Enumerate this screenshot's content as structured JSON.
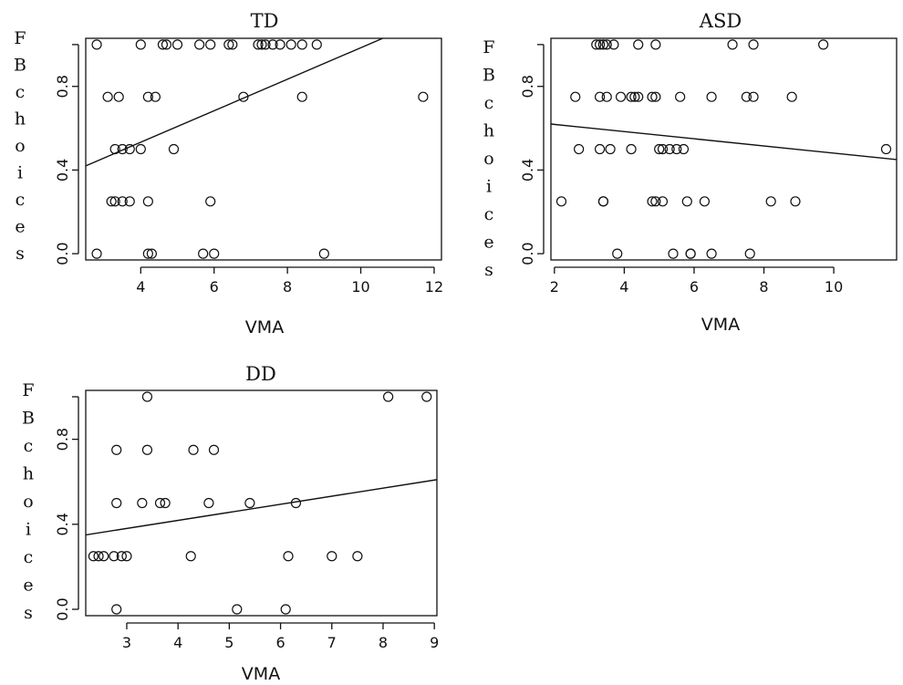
{
  "chart_data": [
    {
      "type": "scatter",
      "title": "TD",
      "xlabel": "VMA",
      "ylabel": "FBchoices",
      "xlim": [
        2.5,
        12.2
      ],
      "ylim": [
        -0.03,
        1.03
      ],
      "xticks": [
        4,
        6,
        8,
        10,
        12
      ],
      "yticks": [
        0.0,
        0.4,
        0.8
      ],
      "points": [
        [
          2.8,
          1.0
        ],
        [
          4.0,
          1.0
        ],
        [
          4.6,
          1.0
        ],
        [
          4.7,
          1.0
        ],
        [
          5.0,
          1.0
        ],
        [
          5.6,
          1.0
        ],
        [
          5.9,
          1.0
        ],
        [
          6.4,
          1.0
        ],
        [
          6.5,
          1.0
        ],
        [
          7.2,
          1.0
        ],
        [
          7.3,
          1.0
        ],
        [
          7.4,
          1.0
        ],
        [
          7.6,
          1.0
        ],
        [
          7.8,
          1.0
        ],
        [
          8.1,
          1.0
        ],
        [
          8.4,
          1.0
        ],
        [
          8.8,
          1.0
        ],
        [
          3.1,
          0.75
        ],
        [
          3.4,
          0.75
        ],
        [
          4.2,
          0.75
        ],
        [
          4.4,
          0.75
        ],
        [
          6.8,
          0.75
        ],
        [
          8.4,
          0.75
        ],
        [
          11.7,
          0.75
        ],
        [
          3.3,
          0.5
        ],
        [
          3.5,
          0.5
        ],
        [
          3.7,
          0.5
        ],
        [
          4.0,
          0.5
        ],
        [
          4.9,
          0.5
        ],
        [
          3.2,
          0.25
        ],
        [
          3.3,
          0.25
        ],
        [
          3.5,
          0.25
        ],
        [
          3.7,
          0.25
        ],
        [
          4.2,
          0.25
        ],
        [
          5.9,
          0.25
        ],
        [
          2.8,
          0.0
        ],
        [
          4.2,
          0.0
        ],
        [
          4.3,
          0.0
        ],
        [
          5.7,
          0.0
        ],
        [
          6.0,
          0.0
        ],
        [
          9.0,
          0.0
        ]
      ],
      "fit_line": [
        [
          2.5,
          0.42
        ],
        [
          10.6,
          1.03
        ]
      ]
    },
    {
      "type": "scatter",
      "title": "ASD",
      "xlabel": "VMA",
      "ylabel": "FBchoices",
      "xlim": [
        1.9,
        11.8
      ],
      "ylim": [
        -0.03,
        1.03
      ],
      "xticks": [
        2,
        4,
        6,
        8,
        10
      ],
      "yticks": [
        0.0,
        0.4,
        0.8
      ],
      "points": [
        [
          3.2,
          1.0
        ],
        [
          3.3,
          1.0
        ],
        [
          3.4,
          1.0
        ],
        [
          3.5,
          1.0
        ],
        [
          3.7,
          1.0
        ],
        [
          4.4,
          1.0
        ],
        [
          4.9,
          1.0
        ],
        [
          7.1,
          1.0
        ],
        [
          7.7,
          1.0
        ],
        [
          9.7,
          1.0
        ],
        [
          2.6,
          0.75
        ],
        [
          3.3,
          0.75
        ],
        [
          3.5,
          0.75
        ],
        [
          3.9,
          0.75
        ],
        [
          4.2,
          0.75
        ],
        [
          4.3,
          0.75
        ],
        [
          4.4,
          0.75
        ],
        [
          4.8,
          0.75
        ],
        [
          4.9,
          0.75
        ],
        [
          5.6,
          0.75
        ],
        [
          6.5,
          0.75
        ],
        [
          7.5,
          0.75
        ],
        [
          7.7,
          0.75
        ],
        [
          8.8,
          0.75
        ],
        [
          2.7,
          0.5
        ],
        [
          3.3,
          0.5
        ],
        [
          3.6,
          0.5
        ],
        [
          4.2,
          0.5
        ],
        [
          5.0,
          0.5
        ],
        [
          5.1,
          0.5
        ],
        [
          5.3,
          0.5
        ],
        [
          5.5,
          0.5
        ],
        [
          5.7,
          0.5
        ],
        [
          11.5,
          0.5
        ],
        [
          2.2,
          0.25
        ],
        [
          3.4,
          0.25
        ],
        [
          3.4,
          0.25
        ],
        [
          4.8,
          0.25
        ],
        [
          4.9,
          0.25
        ],
        [
          5.1,
          0.25
        ],
        [
          5.8,
          0.25
        ],
        [
          6.3,
          0.25
        ],
        [
          8.2,
          0.25
        ],
        [
          8.9,
          0.25
        ],
        [
          3.8,
          0.0
        ],
        [
          5.4,
          0.0
        ],
        [
          5.9,
          0.0
        ],
        [
          5.9,
          0.0
        ],
        [
          6.5,
          0.0
        ],
        [
          7.6,
          0.0
        ]
      ],
      "fit_line": [
        [
          1.9,
          0.62
        ],
        [
          11.8,
          0.45
        ]
      ]
    },
    {
      "type": "scatter",
      "title": "DD",
      "xlabel": "VMA",
      "ylabel": "FBchoices",
      "xlim": [
        2.2,
        9.05
      ],
      "ylim": [
        -0.03,
        1.03
      ],
      "xticks": [
        3,
        4,
        5,
        6,
        7,
        8,
        9
      ],
      "yticks": [
        0.0,
        0.4,
        0.8
      ],
      "points": [
        [
          3.4,
          1.0
        ],
        [
          8.1,
          1.0
        ],
        [
          8.85,
          1.0
        ],
        [
          2.8,
          0.75
        ],
        [
          3.4,
          0.75
        ],
        [
          4.3,
          0.75
        ],
        [
          4.7,
          0.75
        ],
        [
          2.8,
          0.5
        ],
        [
          3.3,
          0.5
        ],
        [
          3.65,
          0.5
        ],
        [
          3.75,
          0.5
        ],
        [
          4.6,
          0.5
        ],
        [
          5.4,
          0.5
        ],
        [
          6.3,
          0.5
        ],
        [
          2.35,
          0.25
        ],
        [
          2.45,
          0.25
        ],
        [
          2.55,
          0.25
        ],
        [
          2.75,
          0.25
        ],
        [
          2.9,
          0.25
        ],
        [
          3.0,
          0.25
        ],
        [
          4.25,
          0.25
        ],
        [
          6.15,
          0.25
        ],
        [
          7.0,
          0.25
        ],
        [
          7.5,
          0.25
        ],
        [
          2.8,
          0.0
        ],
        [
          5.15,
          0.0
        ],
        [
          6.1,
          0.0
        ]
      ],
      "fit_line": [
        [
          2.2,
          0.35
        ],
        [
          9.05,
          0.61
        ]
      ]
    }
  ]
}
